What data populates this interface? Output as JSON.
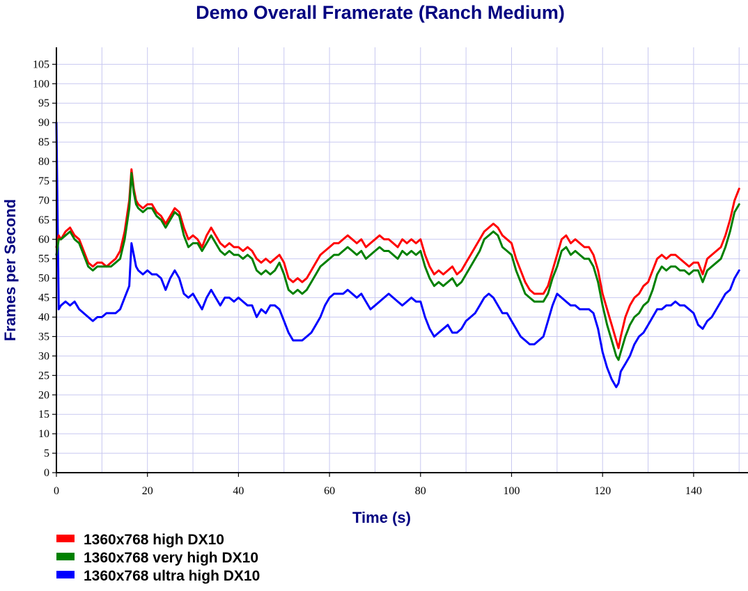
{
  "chart_data": {
    "type": "line",
    "title": "Demo Overall Framerate (Ranch Medium)",
    "xlabel": "Time (s)",
    "ylabel": "Frames per Second",
    "xlim": [
      0,
      152
    ],
    "ylim": [
      0,
      108
    ],
    "x_ticks": [
      0,
      20,
      40,
      60,
      80,
      100,
      120,
      140
    ],
    "y_ticks": [
      0,
      5,
      10,
      15,
      20,
      25,
      30,
      35,
      40,
      45,
      50,
      55,
      60,
      65,
      70,
      75,
      80,
      85,
      90,
      95,
      100,
      105
    ],
    "grid": true,
    "legend_position": "bottom-left",
    "series": [
      {
        "name": "1360x768 high DX10",
        "color": "#ff0000",
        "x": [
          0,
          0.5,
          1,
          2,
          3,
          4,
          5,
          6,
          7,
          8,
          9,
          10,
          11,
          12,
          13,
          14,
          15,
          16,
          16.5,
          17,
          17.5,
          18,
          19,
          20,
          21,
          22,
          23,
          24,
          25,
          26,
          27,
          28,
          29,
          30,
          31,
          32,
          33,
          34,
          35,
          36,
          37,
          38,
          39,
          40,
          41,
          42,
          43,
          44,
          45,
          46,
          47,
          48,
          49,
          50,
          51,
          52,
          53,
          54,
          55,
          56,
          57,
          58,
          59,
          60,
          61,
          62,
          63,
          64,
          65,
          66,
          67,
          68,
          69,
          70,
          71,
          72,
          73,
          74,
          75,
          76,
          77,
          78,
          79,
          80,
          81,
          82,
          83,
          84,
          85,
          86,
          87,
          88,
          89,
          90,
          91,
          92,
          93,
          94,
          95,
          96,
          97,
          98,
          99,
          100,
          101,
          102,
          103,
          104,
          105,
          106,
          107,
          108,
          109,
          110,
          111,
          112,
          113,
          114,
          115,
          116,
          117,
          118,
          119,
          120,
          121,
          122,
          123,
          123.5,
          124,
          125,
          126,
          127,
          128,
          129,
          130,
          131,
          132,
          133,
          134,
          135,
          136,
          137,
          138,
          139,
          140,
          141,
          142,
          143,
          144,
          145,
          146,
          147,
          148,
          149,
          150
        ],
        "values": [
          58,
          61,
          60,
          62,
          63,
          61,
          60,
          57,
          54,
          53,
          54,
          54,
          53,
          54,
          55,
          57,
          62,
          70,
          78,
          73,
          70,
          69,
          68,
          69,
          69,
          67,
          66,
          64,
          66,
          68,
          67,
          63,
          60,
          61,
          60,
          58,
          61,
          63,
          61,
          59,
          58,
          59,
          58,
          58,
          57,
          58,
          57,
          55,
          54,
          55,
          54,
          55,
          56,
          54,
          50,
          49,
          50,
          49,
          50,
          52,
          54,
          56,
          57,
          58,
          59,
          59,
          60,
          61,
          60,
          59,
          60,
          58,
          59,
          60,
          61,
          60,
          60,
          59,
          58,
          60,
          59,
          60,
          59,
          60,
          56,
          53,
          51,
          52,
          51,
          52,
          53,
          51,
          52,
          54,
          56,
          58,
          60,
          62,
          63,
          64,
          63,
          61,
          60,
          59,
          55,
          52,
          49,
          47,
          46,
          46,
          46,
          48,
          52,
          56,
          60,
          61,
          59,
          60,
          59,
          58,
          58,
          56,
          52,
          46,
          42,
          38,
          34,
          32,
          35,
          40,
          43,
          45,
          46,
          48,
          49,
          52,
          55,
          56,
          55,
          56,
          56,
          55,
          54,
          53,
          54,
          54,
          51,
          55,
          56,
          57,
          58,
          61,
          65,
          70,
          73
        ]
      },
      {
        "name": "1360x768 very high DX10",
        "color": "#008000",
        "x": [
          0,
          0.5,
          1,
          2,
          3,
          4,
          5,
          6,
          7,
          8,
          9,
          10,
          11,
          12,
          13,
          14,
          15,
          16,
          16.5,
          17,
          17.5,
          18,
          19,
          20,
          21,
          22,
          23,
          24,
          25,
          26,
          27,
          28,
          29,
          30,
          31,
          32,
          33,
          34,
          35,
          36,
          37,
          38,
          39,
          40,
          41,
          42,
          43,
          44,
          45,
          46,
          47,
          48,
          49,
          50,
          51,
          52,
          53,
          54,
          55,
          56,
          57,
          58,
          59,
          60,
          61,
          62,
          63,
          64,
          65,
          66,
          67,
          68,
          69,
          70,
          71,
          72,
          73,
          74,
          75,
          76,
          77,
          78,
          79,
          80,
          81,
          82,
          83,
          84,
          85,
          86,
          87,
          88,
          89,
          90,
          91,
          92,
          93,
          94,
          95,
          96,
          97,
          98,
          99,
          100,
          101,
          102,
          103,
          104,
          105,
          106,
          107,
          108,
          109,
          110,
          111,
          112,
          113,
          114,
          115,
          116,
          117,
          118,
          119,
          120,
          121,
          122,
          123,
          123.5,
          124,
          125,
          126,
          127,
          128,
          129,
          130,
          131,
          132,
          133,
          134,
          135,
          136,
          137,
          138,
          139,
          140,
          141,
          142,
          143,
          144,
          145,
          146,
          147,
          148,
          149,
          150
        ],
        "values": [
          56,
          60,
          60,
          61,
          62,
          60,
          59,
          56,
          53,
          52,
          53,
          53,
          53,
          53,
          54,
          55,
          60,
          68,
          77,
          72,
          69,
          68,
          67,
          68,
          68,
          66,
          65,
          63,
          65,
          67,
          66,
          61,
          58,
          59,
          59,
          57,
          59,
          61,
          59,
          57,
          56,
          57,
          56,
          56,
          55,
          56,
          55,
          52,
          51,
          52,
          51,
          52,
          54,
          51,
          47,
          46,
          47,
          46,
          47,
          49,
          51,
          53,
          54,
          55,
          56,
          56,
          57,
          58,
          57,
          56,
          57,
          55,
          56,
          57,
          58,
          57,
          57,
          56,
          55,
          57,
          56,
          57,
          56,
          57,
          53,
          50,
          48,
          49,
          48,
          49,
          50,
          48,
          49,
          51,
          53,
          55,
          57,
          60,
          61,
          62,
          61,
          58,
          57,
          56,
          52,
          49,
          46,
          45,
          44,
          44,
          44,
          46,
          50,
          53,
          57,
          58,
          56,
          57,
          56,
          55,
          55,
          53,
          49,
          43,
          38,
          34,
          30,
          29,
          31,
          35,
          38,
          40,
          41,
          43,
          44,
          47,
          51,
          53,
          52,
          53,
          53,
          52,
          52,
          51,
          52,
          52,
          49,
          52,
          53,
          54,
          55,
          58,
          62,
          67,
          69
        ]
      },
      {
        "name": "1360x768 ultra high DX10",
        "color": "#0000ff",
        "x": [
          0,
          0.5,
          1,
          2,
          3,
          4,
          5,
          6,
          7,
          8,
          9,
          10,
          11,
          12,
          13,
          14,
          15,
          16,
          16.5,
          17,
          17.5,
          18,
          19,
          20,
          21,
          22,
          23,
          24,
          25,
          26,
          27,
          28,
          29,
          30,
          31,
          32,
          33,
          34,
          35,
          36,
          37,
          38,
          39,
          40,
          41,
          42,
          43,
          44,
          45,
          46,
          47,
          48,
          49,
          50,
          51,
          52,
          53,
          54,
          55,
          56,
          57,
          58,
          59,
          60,
          61,
          62,
          63,
          64,
          65,
          66,
          67,
          68,
          69,
          70,
          71,
          72,
          73,
          74,
          75,
          76,
          77,
          78,
          79,
          80,
          81,
          82,
          83,
          84,
          85,
          86,
          87,
          88,
          89,
          90,
          91,
          92,
          93,
          94,
          95,
          96,
          97,
          98,
          99,
          100,
          101,
          102,
          103,
          104,
          105,
          106,
          107,
          108,
          109,
          110,
          111,
          112,
          113,
          114,
          115,
          116,
          117,
          118,
          119,
          120,
          121,
          122,
          123,
          123.5,
          124,
          125,
          126,
          127,
          128,
          129,
          130,
          131,
          132,
          133,
          134,
          135,
          136,
          137,
          138,
          139,
          140,
          141,
          142,
          143,
          144,
          145,
          146,
          147,
          148,
          149,
          150
        ],
        "values": [
          90,
          42,
          43,
          44,
          43,
          44,
          42,
          41,
          40,
          39,
          40,
          40,
          41,
          41,
          41,
          42,
          45,
          48,
          59,
          56,
          53,
          52,
          51,
          52,
          51,
          51,
          50,
          47,
          50,
          52,
          50,
          46,
          45,
          46,
          44,
          42,
          45,
          47,
          45,
          43,
          45,
          45,
          44,
          45,
          44,
          43,
          43,
          40,
          42,
          41,
          43,
          43,
          42,
          39,
          36,
          34,
          34,
          34,
          35,
          36,
          38,
          40,
          43,
          45,
          46,
          46,
          46,
          47,
          46,
          45,
          46,
          44,
          42,
          43,
          44,
          45,
          46,
          45,
          44,
          43,
          44,
          45,
          44,
          44,
          40,
          37,
          35,
          36,
          37,
          38,
          36,
          36,
          37,
          39,
          40,
          41,
          43,
          45,
          46,
          45,
          43,
          41,
          41,
          39,
          37,
          35,
          34,
          33,
          33,
          34,
          35,
          39,
          43,
          46,
          45,
          44,
          43,
          43,
          42,
          42,
          42,
          41,
          37,
          31,
          27,
          24,
          22,
          23,
          26,
          28,
          30,
          33,
          35,
          36,
          38,
          40,
          42,
          42,
          43,
          43,
          44,
          43,
          43,
          42,
          41,
          38,
          37,
          39,
          40,
          42,
          44,
          46,
          47,
          50,
          52
        ]
      }
    ]
  }
}
